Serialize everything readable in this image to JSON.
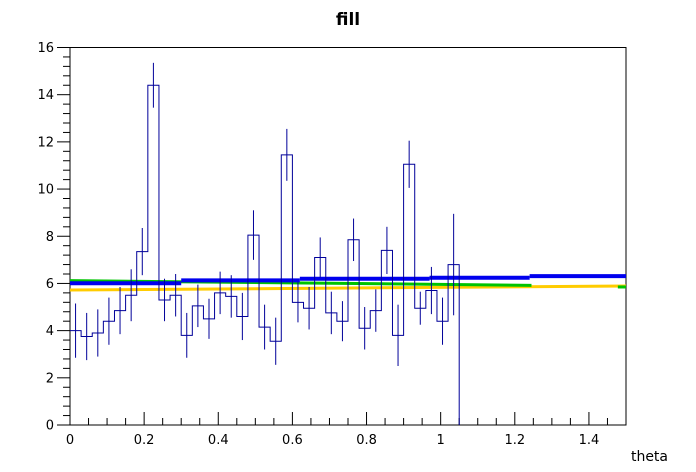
{
  "title": "fill",
  "chart_data": {
    "type": "histogram",
    "title": "fill",
    "xlabel": "theta",
    "ylabel": "",
    "xlim": [
      0,
      1.5
    ],
    "ylim": [
      0,
      16
    ],
    "grid": false,
    "legend": "none",
    "bin_start": 0,
    "bin_width": 0.03,
    "n_bins": 35,
    "values": [
      4.0,
      3.75,
      3.9,
      4.4,
      4.85,
      5.5,
      7.35,
      14.4,
      5.3,
      5.5,
      3.8,
      5.05,
      4.5,
      5.6,
      5.45,
      4.6,
      8.05,
      4.15,
      3.55,
      11.45,
      5.2,
      4.95,
      7.1,
      4.75,
      4.4,
      7.85,
      4.1,
      4.85,
      7.4,
      3.8,
      11.05,
      4.95,
      5.7,
      4.4,
      6.8
    ],
    "errors": [
      1.15,
      1.0,
      1.0,
      1.0,
      1.0,
      1.1,
      1.0,
      0.95,
      0.9,
      0.9,
      0.95,
      0.9,
      0.85,
      0.9,
      0.9,
      1.0,
      1.05,
      0.95,
      1.0,
      1.1,
      0.85,
      0.9,
      0.85,
      0.9,
      0.85,
      0.9,
      0.9,
      0.9,
      1.0,
      1.3,
      1.0,
      0.7,
      1.0,
      1.0,
      2.15
    ],
    "hist_color": "#000099",
    "frame_color": "#000000",
    "background_color": "#ffffff",
    "x_ticks": {
      "values": [
        0,
        0.2,
        0.4,
        0.6,
        0.8,
        1.0,
        1.2,
        1.4
      ],
      "labels": [
        "0",
        "0.2",
        "0.4",
        "0.6",
        "0.8",
        "1",
        "1.2",
        "1.4"
      ],
      "minor_step": 0.05
    },
    "y_ticks": {
      "values": [
        0,
        2,
        4,
        6,
        8,
        10,
        12,
        14,
        16
      ],
      "labels": [
        "0",
        "2",
        "4",
        "6",
        "8",
        "10",
        "12",
        "14",
        "16"
      ],
      "minor_step": 0.4
    },
    "fits": [
      {
        "name": "yellow-fit-line",
        "color": "#ffcc00",
        "width": 3,
        "type": "line",
        "x0": 0,
        "y0": 5.72,
        "x1": 1.5,
        "y1": 5.89
      },
      {
        "name": "green-fit-line",
        "color": "#00c400",
        "width": 3,
        "type": "line",
        "x0": 0,
        "y0": 6.12,
        "x1": 1.245,
        "y1": 5.92,
        "end_dash": {
          "x0": 1.478,
          "x1": 1.5,
          "y": 5.85
        }
      },
      {
        "name": "blue-fit-line",
        "color": "#0000ee",
        "width": 4,
        "type": "steps",
        "segments": [
          {
            "x0": 0.0,
            "x1": 0.3,
            "y": 6.01
          },
          {
            "x0": 0.3,
            "x1": 0.62,
            "y": 6.13
          },
          {
            "x0": 0.62,
            "x1": 0.97,
            "y": 6.2
          },
          {
            "x0": 0.97,
            "x1": 1.24,
            "y": 6.24
          },
          {
            "x0": 1.24,
            "x1": 1.5,
            "y": 6.31
          }
        ]
      }
    ]
  }
}
